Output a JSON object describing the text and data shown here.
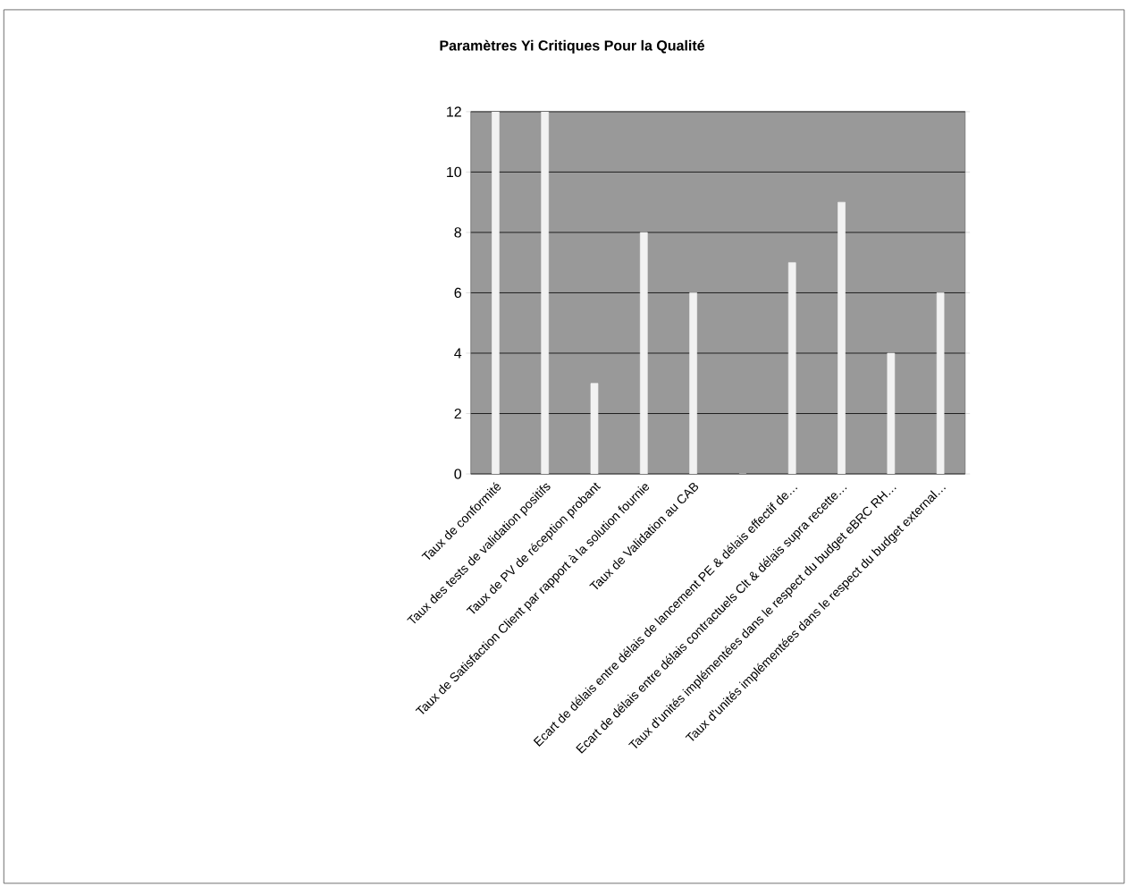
{
  "chart_data": {
    "type": "bar",
    "title": "Paramètres Yi Critiques Pour la Qualité",
    "categories": [
      "Taux de conformité",
      "Taux des tests de validation positifs",
      "Taux de PV de réception probant",
      "Taux de Satisfaction Client par rapport à la solution fournie",
      "Taux de Validation au CAB",
      null,
      "Ecart de délais entre délais de lancement PE & délais effectif de…",
      "Ecart de délais entre délais contractuels Clt & délais supra recette…",
      "Taux d'unités implémentées dans le respect du budget eBRC RH…",
      "Taux d'unités implémentées dans le respect du budget external…"
    ],
    "values": [
      12,
      12,
      3,
      8,
      6,
      0,
      7,
      9,
      4,
      6
    ],
    "color": "#f2f2f2",
    "ylim": [
      0,
      12
    ],
    "yticks": [
      0,
      2,
      4,
      6,
      8,
      10,
      12
    ],
    "grid": "y"
  }
}
